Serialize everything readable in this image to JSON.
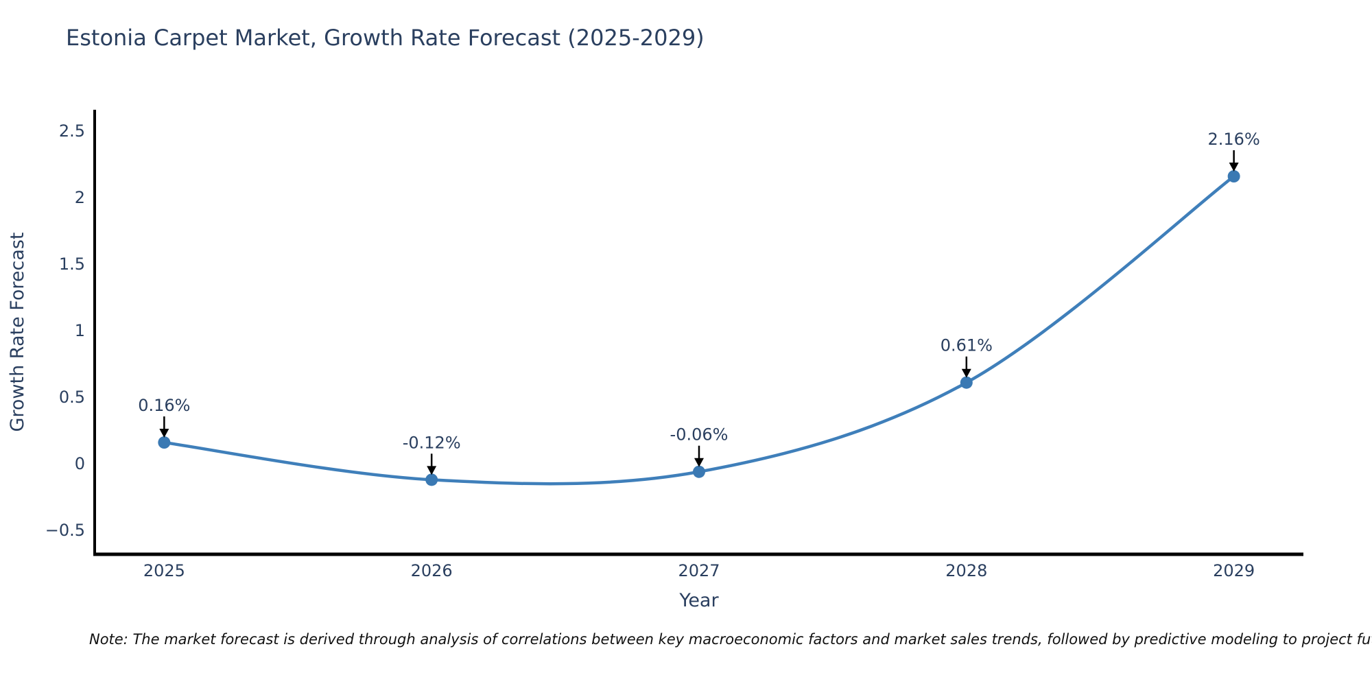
{
  "header": {
    "title": "Estonia Carpet Market, Growth Rate Forecast (2025-2029)"
  },
  "footnote": {
    "text": "Note: The market forecast is derived through analysis of correlations between key macroeconomic factors and market sales trends, followed by predictive modeling to project future sa"
  },
  "chart_data": {
    "type": "line",
    "title": "Estonia Carpet Market, Growth Rate Forecast (2025-2029)",
    "xlabel": "Year",
    "ylabel": "Growth Rate Forecast",
    "x": [
      2025,
      2026,
      2027,
      2028,
      2029
    ],
    "series": [
      {
        "name": "Growth Rate Forecast",
        "values": [
          0.16,
          -0.12,
          -0.06,
          0.61,
          2.16
        ]
      }
    ],
    "point_labels": [
      "0.16%",
      "-0.12%",
      "-0.06%",
      "0.61%",
      "2.16%"
    ],
    "xticks": [
      "2025",
      "2026",
      "2027",
      "2028",
      "2029"
    ],
    "yticks": {
      "labels": [
        "2.5",
        "2",
        "1.5",
        "1",
        "0.5",
        "0",
        "−0.5"
      ],
      "values": [
        2.5,
        2,
        1.5,
        1,
        0.5,
        0,
        -0.5
      ]
    },
    "xlim": [
      2024.74,
      2029.26
    ],
    "ylim": [
      -0.68,
      2.66
    ],
    "curve": "spline",
    "grid": false,
    "legend": "none",
    "line_color": "#3f7fba",
    "marker_color": "#3a79b3",
    "axis_color": "#000000",
    "text_color": "#2a3f5f",
    "annotation_color": "#2a3f5f",
    "arrow_color": "#000000"
  }
}
